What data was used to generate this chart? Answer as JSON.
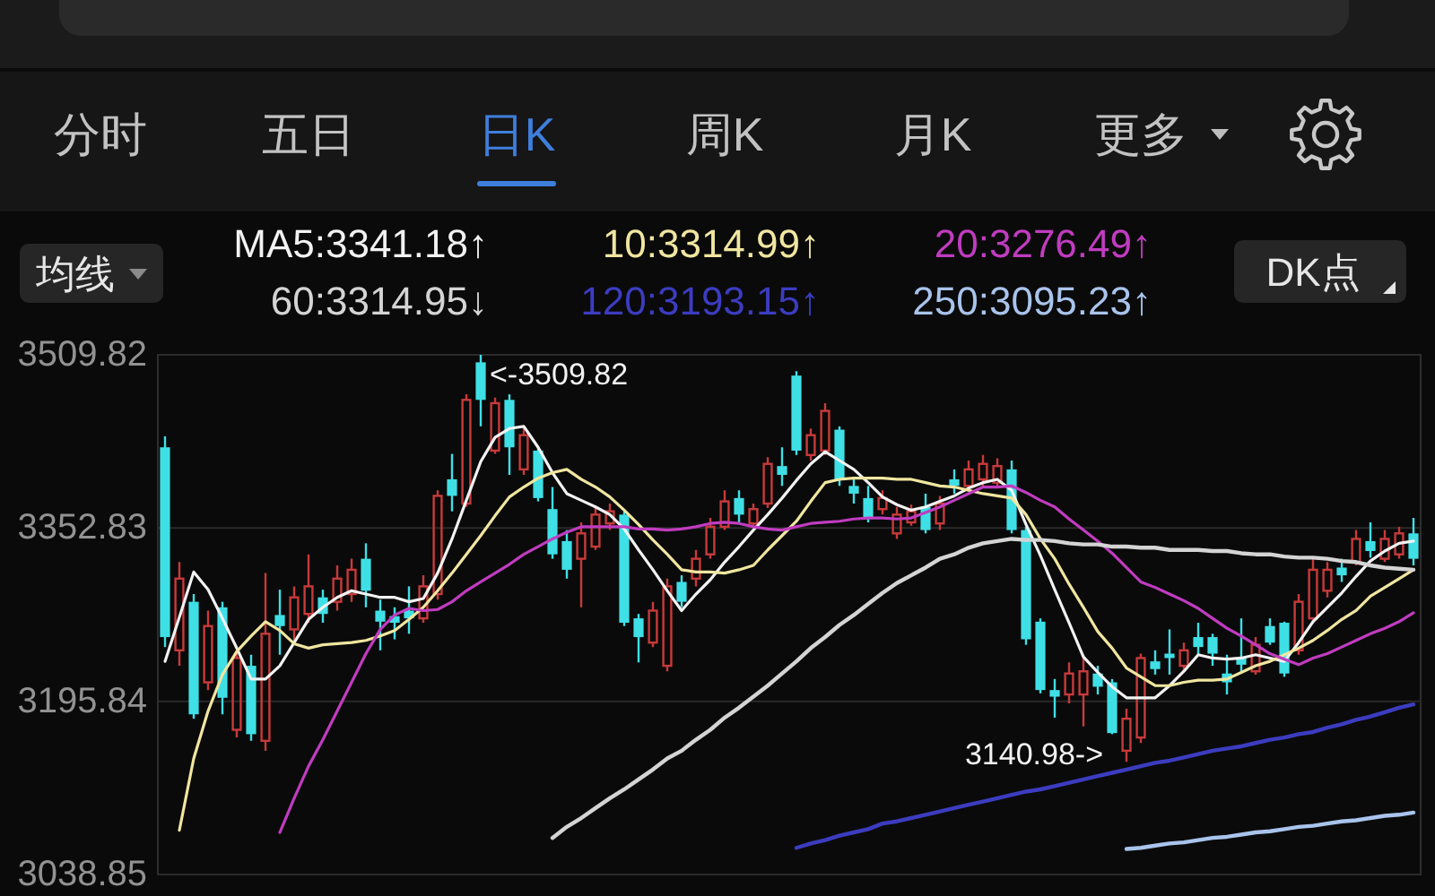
{
  "chart_data": {
    "type": "candlestick",
    "categories": [
      null,
      null,
      null,
      null,
      null,
      null,
      null,
      null,
      null,
      null,
      null,
      null,
      null,
      null,
      null,
      null,
      null,
      null,
      null,
      null,
      null,
      null,
      null,
      null,
      null,
      null,
      null,
      null,
      null,
      null,
      null,
      null,
      null,
      null,
      null,
      null,
      null,
      null,
      null,
      null,
      null,
      null,
      null,
      null,
      null,
      null,
      null,
      null,
      null,
      null,
      null,
      null,
      null,
      null,
      null,
      null,
      null,
      null,
      null,
      null,
      null,
      null,
      null,
      null,
      null,
      null,
      null,
      null,
      null,
      null,
      null,
      null,
      null,
      null,
      null,
      null,
      null,
      null,
      null,
      null,
      null,
      null,
      null,
      null,
      null,
      null,
      null,
      null
    ],
    "ohlc": [
      [
        3426,
        3436,
        3245,
        3254
      ],
      [
        3242,
        3322,
        3228,
        3307
      ],
      [
        3286,
        3293,
        3180,
        3184
      ],
      [
        3213,
        3278,
        3206,
        3264
      ],
      [
        3281,
        3286,
        3184,
        3199
      ],
      [
        3170,
        3242,
        3163,
        3235
      ],
      [
        3228,
        3238,
        3160,
        3166
      ],
      [
        3160,
        3312,
        3151,
        3257
      ],
      [
        3274,
        3297,
        3238,
        3264
      ],
      [
        3261,
        3300,
        3247,
        3290
      ],
      [
        3275,
        3329,
        3267,
        3300
      ],
      [
        3290,
        3297,
        3267,
        3275
      ],
      [
        3286,
        3319,
        3278,
        3307
      ],
      [
        3293,
        3325,
        3286,
        3315
      ],
      [
        3325,
        3339,
        3281,
        3296
      ],
      [
        3278,
        3288,
        3242,
        3268
      ],
      [
        3273,
        3281,
        3252,
        3267
      ],
      [
        3278,
        3300,
        3257,
        3271
      ],
      [
        3271,
        3310,
        3267,
        3300
      ],
      [
        3293,
        3387,
        3288,
        3382
      ],
      [
        3397,
        3420,
        3368,
        3382
      ],
      [
        3375,
        3474,
        3372,
        3469
      ],
      [
        3503,
        3509.82,
        3445,
        3469
      ],
      [
        3423,
        3471,
        3420,
        3466
      ],
      [
        3469,
        3474,
        3401,
        3426
      ],
      [
        3406,
        3445,
        3401,
        3437
      ],
      [
        3423,
        3426,
        3377,
        3380
      ],
      [
        3370,
        3390,
        3325,
        3329
      ],
      [
        3341,
        3351,
        3307,
        3315
      ],
      [
        3325,
        3358,
        3281,
        3348
      ],
      [
        3336,
        3372,
        3333,
        3365
      ],
      [
        3357,
        3375,
        3351,
        3368
      ],
      [
        3365,
        3368,
        3264,
        3267
      ],
      [
        3271,
        3275,
        3231,
        3254
      ],
      [
        3249,
        3286,
        3245,
        3278
      ],
      [
        3228,
        3307,
        3223,
        3300
      ],
      [
        3304,
        3310,
        3281,
        3286
      ],
      [
        3307,
        3333,
        3300,
        3325
      ],
      [
        3329,
        3362,
        3325,
        3354
      ],
      [
        3354,
        3387,
        3351,
        3377
      ],
      [
        3380,
        3387,
        3358,
        3365
      ],
      [
        3357,
        3375,
        3354,
        3370
      ],
      [
        3375,
        3417,
        3371,
        3411
      ],
      [
        3409,
        3426,
        3391,
        3401
      ],
      [
        3491,
        3495,
        3419,
        3423
      ],
      [
        3419,
        3443,
        3414,
        3437
      ],
      [
        3423,
        3466,
        3419,
        3459
      ],
      [
        3442,
        3445,
        3391,
        3397
      ],
      [
        3391,
        3397,
        3375,
        3384
      ],
      [
        3380,
        3391,
        3358,
        3361
      ],
      [
        3370,
        3387,
        3365,
        3380
      ],
      [
        3348,
        3372,
        3343,
        3365
      ],
      [
        3358,
        3374,
        3355,
        3368
      ],
      [
        3372,
        3384,
        3348,
        3351
      ],
      [
        3357,
        3382,
        3351,
        3375
      ],
      [
        3397,
        3406,
        3384,
        3391
      ],
      [
        3391,
        3414,
        3387,
        3406
      ],
      [
        3397,
        3419,
        3391,
        3411
      ],
      [
        3394,
        3416,
        3390,
        3409
      ],
      [
        3406,
        3414,
        3348,
        3351
      ],
      [
        3351,
        3354,
        3247,
        3252
      ],
      [
        3268,
        3271,
        3203,
        3206
      ],
      [
        3206,
        3216,
        3181,
        3200
      ],
      [
        3202,
        3231,
        3194,
        3221
      ],
      [
        3202,
        3238,
        3173,
        3223
      ],
      [
        3221,
        3228,
        3202,
        3209
      ],
      [
        3213,
        3216,
        3166,
        3167
      ],
      [
        3151,
        3189,
        3140.98,
        3180
      ],
      [
        3163,
        3239,
        3158,
        3235
      ],
      [
        3232,
        3242,
        3220,
        3225
      ],
      [
        3239,
        3261,
        3220,
        3235
      ],
      [
        3228,
        3249,
        3223,
        3242
      ],
      [
        3254,
        3267,
        3238,
        3245
      ],
      [
        3254,
        3257,
        3228,
        3239
      ],
      [
        3221,
        3238,
        3202,
        3213
      ],
      [
        3235,
        3271,
        3223,
        3229
      ],
      [
        3223,
        3254,
        3220,
        3247
      ],
      [
        3264,
        3271,
        3247,
        3249
      ],
      [
        3267,
        3268,
        3218,
        3221
      ],
      [
        3242,
        3293,
        3238,
        3286
      ],
      [
        3271,
        3325,
        3267,
        3315
      ],
      [
        3296,
        3322,
        3290,
        3315
      ],
      [
        3317,
        3325,
        3304,
        3310
      ],
      [
        3322,
        3351,
        3319,
        3343
      ],
      [
        3341,
        3358,
        3326,
        3332
      ],
      [
        3325,
        3351,
        3322,
        3343
      ],
      [
        3329,
        3354,
        3325,
        3348
      ],
      [
        3348,
        3362,
        3319,
        3325
      ]
    ],
    "colors": [
      "#3fdfe6",
      "#c83a3a",
      "#3fdfe6",
      "#c83a3a",
      "#3fdfe6",
      "#c83a3a",
      "#3fdfe6",
      "#c83a3a",
      "#3fdfe6",
      "#c83a3a",
      "#c83a3a",
      "#3fdfe6",
      "#c83a3a",
      "#c83a3a",
      "#3fdfe6",
      "#3fdfe6",
      "#3fdfe6",
      "#3fdfe6",
      "#c83a3a",
      "#c83a3a",
      "#3fdfe6",
      "#c83a3a",
      "#3fdfe6",
      "#c83a3a",
      "#3fdfe6",
      "#c83a3a",
      "#3fdfe6",
      "#3fdfe6",
      "#3fdfe6",
      "#c83a3a",
      "#c83a3a",
      "#c83a3a",
      "#3fdfe6",
      "#3fdfe6",
      "#c83a3a",
      "#c83a3a",
      "#3fdfe6",
      "#c83a3a",
      "#c83a3a",
      "#c83a3a",
      "#3fdfe6",
      "#c83a3a",
      "#c83a3a",
      "#3fdfe6",
      "#3fdfe6",
      "#c83a3a",
      "#c83a3a",
      "#3fdfe6",
      "#3fdfe6",
      "#3fdfe6",
      "#c83a3a",
      "#c83a3a",
      "#c83a3a",
      "#3fdfe6",
      "#c83a3a",
      "#3fdfe6",
      "#c83a3a",
      "#c83a3a",
      "#c83a3a",
      "#3fdfe6",
      "#3fdfe6",
      "#3fdfe6",
      "#3fdfe6",
      "#c83a3a",
      "#c83a3a",
      "#3fdfe6",
      "#3fdfe6",
      "#c83a3a",
      "#c83a3a",
      "#3fdfe6",
      "#3fdfe6",
      "#c83a3a",
      "#3fdfe6",
      "#3fdfe6",
      "#3fdfe6",
      "#3fdfe6",
      "#c83a3a",
      "#3fdfe6",
      "#3fdfe6",
      "#c83a3a",
      "#c83a3a",
      "#c83a3a",
      "#3fdfe6",
      "#c83a3a",
      "#3fdfe6",
      "#c83a3a",
      "#c83a3a",
      "#3fdfe6"
    ],
    "series": [
      {
        "name": "MA5:3341.18↑",
        "type": "line",
        "color": "#f2f2f2",
        "values": [
          3232,
          3272,
          3313,
          3297,
          3271,
          3244,
          3216,
          3216,
          3228,
          3249,
          3270,
          3281,
          3290,
          3296,
          3293,
          3290,
          3290,
          3286,
          3289,
          3312,
          3343,
          3378,
          3413,
          3435,
          3443,
          3445,
          3426,
          3403,
          3384,
          3378,
          3372,
          3365,
          3352,
          3333,
          3315,
          3296,
          3278,
          3293,
          3306,
          3322,
          3336,
          3351,
          3365,
          3380,
          3396,
          3411,
          3422,
          3414,
          3406,
          3394,
          3381,
          3374,
          3369,
          3372,
          3377,
          3382,
          3389,
          3394,
          3397,
          3387,
          3356,
          3328,
          3297,
          3267,
          3236,
          3222,
          3209,
          3199,
          3199,
          3199,
          3210,
          3223,
          3238,
          3235,
          3234,
          3235,
          3238,
          3235,
          3232,
          3249,
          3268,
          3281,
          3294,
          3309,
          3323,
          3332,
          3339,
          3341
        ]
      },
      {
        "name": "10:3314.99↑",
        "type": "line",
        "color": "#f0e6a0",
        "values": [
          null,
          3079,
          3144,
          3187,
          3220,
          3241,
          3255,
          3268,
          3260,
          3248,
          3244,
          3247,
          3248,
          3249,
          3251,
          3255,
          3260,
          3270,
          3281,
          3296,
          3312,
          3329,
          3346,
          3364,
          3381,
          3390,
          3398,
          3403,
          3406,
          3397,
          3390,
          3381,
          3369,
          3356,
          3342,
          3329,
          3315,
          3313,
          3313,
          3312,
          3315,
          3319,
          3333,
          3346,
          3359,
          3377,
          3394,
          3397,
          3398,
          3398,
          3398,
          3397,
          3397,
          3394,
          3391,
          3390,
          3387,
          3384,
          3382,
          3380,
          3365,
          3343,
          3325,
          3302,
          3281,
          3259,
          3244,
          3226,
          3218,
          3210,
          3210,
          3213,
          3215,
          3215,
          3216,
          3222,
          3228,
          3232,
          3238,
          3244,
          3251,
          3260,
          3270,
          3278,
          3291,
          3299,
          3307,
          3315
        ]
      },
      {
        "name": "20:3276.49↑",
        "type": "line",
        "color": "#c03cc0",
        "values": [
          null,
          null,
          null,
          null,
          null,
          null,
          null,
          null,
          3077,
          3108,
          3137,
          3161,
          3187,
          3213,
          3239,
          3261,
          3274,
          3280,
          3278,
          3279,
          3286,
          3296,
          3304,
          3312,
          3320,
          3329,
          3336,
          3343,
          3349,
          3354,
          3354,
          3354,
          3354,
          3352,
          3352,
          3351,
          3352,
          3354,
          3357,
          3358,
          3357,
          3354,
          3352,
          3351,
          3354,
          3357,
          3358,
          3359,
          3361,
          3362,
          3362,
          3361,
          3362,
          3367,
          3372,
          3378,
          3384,
          3390,
          3390,
          3391,
          3385,
          3378,
          3372,
          3361,
          3351,
          3341,
          3330,
          3317,
          3304,
          3299,
          3293,
          3287,
          3280,
          3271,
          3262,
          3255,
          3247,
          3239,
          3234,
          3229,
          3235,
          3239,
          3245,
          3251,
          3257,
          3262,
          3268,
          3276
        ]
      },
      {
        "name": "60:3314.95↓",
        "type": "line",
        "color": "#d4d4d4",
        "values": [
          null,
          null,
          null,
          null,
          null,
          null,
          null,
          null,
          null,
          null,
          null,
          null,
          null,
          null,
          null,
          null,
          null,
          null,
          null,
          null,
          null,
          null,
          null,
          null,
          null,
          null,
          null,
          3072,
          3082,
          3090,
          3099,
          3108,
          3116,
          3125,
          3134,
          3144,
          3151,
          3161,
          3170,
          3181,
          3190,
          3200,
          3210,
          3221,
          3232,
          3244,
          3254,
          3265,
          3274,
          3284,
          3294,
          3303,
          3310,
          3317,
          3325,
          3329,
          3335,
          3339,
          3341,
          3343,
          3342,
          3342,
          3341,
          3339,
          3338,
          3338,
          3336,
          3336,
          3335,
          3335,
          3333,
          3333,
          3333,
          3332,
          3332,
          3330,
          3329,
          3329,
          3327,
          3326,
          3326,
          3325,
          3323,
          3322,
          3319,
          3317,
          3316,
          3315
        ]
      },
      {
        "name": "120:3193.15↑",
        "type": "line",
        "color": "#3c3cc0",
        "values": [
          null,
          null,
          null,
          null,
          null,
          null,
          null,
          null,
          null,
          null,
          null,
          null,
          null,
          null,
          null,
          null,
          null,
          null,
          null,
          null,
          null,
          null,
          null,
          null,
          null,
          null,
          null,
          null,
          null,
          null,
          null,
          null,
          null,
          null,
          null,
          null,
          null,
          null,
          null,
          null,
          null,
          null,
          null,
          null,
          3063,
          3067,
          3070,
          3074,
          3077,
          3080,
          3085,
          3087,
          3090,
          3093,
          3096,
          3099,
          3102,
          3105,
          3108,
          3111,
          3114,
          3116,
          3119,
          3122,
          3125,
          3128,
          3131,
          3134,
          3137,
          3140,
          3142,
          3145,
          3148,
          3151,
          3153,
          3155,
          3158,
          3161,
          3163,
          3166,
          3168,
          3172,
          3175,
          3179,
          3182,
          3186,
          3190,
          3193
        ]
      },
      {
        "name": "250:3095.23↑",
        "type": "line",
        "color": "#a9c4ec",
        "values": [
          null,
          null,
          null,
          null,
          null,
          null,
          null,
          null,
          null,
          null,
          null,
          null,
          null,
          null,
          null,
          null,
          null,
          null,
          null,
          null,
          null,
          null,
          null,
          null,
          null,
          null,
          null,
          null,
          null,
          null,
          null,
          null,
          null,
          null,
          null,
          null,
          null,
          null,
          null,
          null,
          null,
          null,
          null,
          null,
          null,
          null,
          null,
          null,
          null,
          null,
          null,
          null,
          null,
          null,
          null,
          null,
          null,
          null,
          null,
          null,
          null,
          null,
          null,
          null,
          null,
          null,
          null,
          3062,
          3063,
          3065,
          3067,
          3068,
          3070,
          3072,
          3073,
          3075,
          3077,
          3078,
          3080,
          3082,
          3083,
          3085,
          3087,
          3088,
          3090,
          3092,
          3093,
          3095
        ]
      }
    ],
    "ylim": [
      3038.85,
      3509.82
    ],
    "yticks": [
      3038.85,
      3195.84,
      3352.83,
      3509.82
    ],
    "grid": "y",
    "legend": "top",
    "tick_labels": "y",
    "annotations": [
      "分时",
      "五日",
      "日K",
      "周K",
      "月K",
      "更多",
      "均线",
      "DK点",
      "<-3509.82",
      "3140.98->"
    ]
  }
}
